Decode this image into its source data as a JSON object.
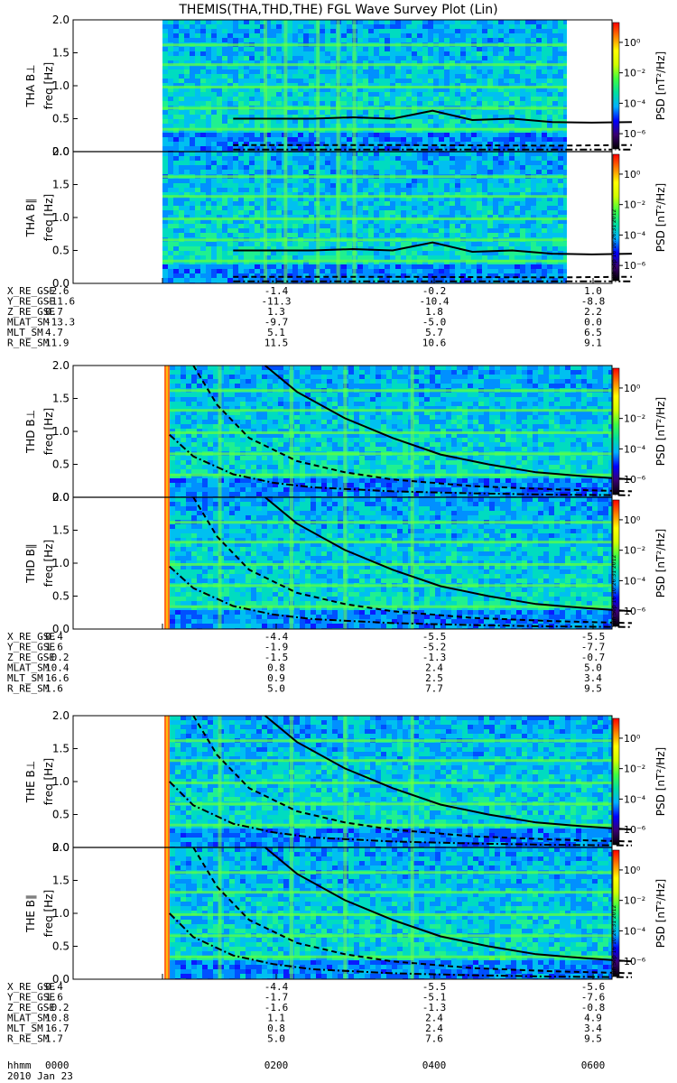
{
  "chart_data": {
    "type": "heatmap",
    "title": "THEMIS(THA,THD,THE) FGL Wave Survey Plot (Lin)",
    "colorbar": {
      "label_prefix": "PSD ",
      "label_unit": "[nT²/Hz]",
      "ticks": [
        "10⁰",
        "10⁻²",
        "10⁻⁴",
        "10⁻⁶"
      ],
      "tick_exponents": [
        0,
        -2,
        -4,
        -6
      ],
      "range_exponent": [
        -7,
        1.3
      ],
      "colors": [
        "#000000",
        "#3a0070",
        "#0000ff",
        "#00b0ff",
        "#00e0a0",
        "#40ff40",
        "#d0ff00",
        "#ffff00",
        "#ff8000",
        "#ff0000"
      ]
    },
    "yaxis": {
      "label": "freq [Hz]",
      "ylim": [
        0,
        2.0
      ],
      "ticks": [
        "0.0",
        "0.5",
        "1.0",
        "1.5",
        "2.0"
      ]
    },
    "stamp": "Sun Sep 16 10:26:31 2012",
    "time_ticks": [
      "0000",
      "0200",
      "0400",
      "0600"
    ],
    "time_row_label": "hhmm",
    "date": "2010 Jan 23",
    "groups": [
      {
        "probe": "THA",
        "panels": [
          {
            "name": "B⊥",
            "label": "THA B⊥"
          },
          {
            "name": "B∥",
            "label": "THA B∥"
          }
        ],
        "data_x_range": [
          0.1,
          0.6
        ],
        "curves": {
          "solid": {
            "x": [
              0.1,
              0.2,
              0.25,
              0.3,
              0.35,
              0.4,
              0.45,
              0.5,
              0.55,
              0.6
            ],
            "y": [
              0.5,
              0.5,
              0.52,
              0.5,
              0.62,
              0.48,
              0.5,
              0.45,
              0.44,
              0.45
            ]
          },
          "dashed": {
            "x": [
              0.1,
              0.3,
              0.5,
              0.6
            ],
            "y": [
              0.1,
              0.1,
              0.09,
              0.1
            ]
          },
          "dashdot": {
            "x": [
              0.1,
              0.3,
              0.5,
              0.6
            ],
            "y": [
              0.03,
              0.03,
              0.03,
              0.03
            ]
          }
        },
        "orbit": {
          "X_RE_GSE": [
            "-2.6",
            "-1.4",
            "-0.2",
            "1.0"
          ],
          "Y_RE_GSE": [
            "-11.6",
            "-11.3",
            "-10.4",
            "-8.8"
          ],
          "Z_RE_GSE": [
            "0.7",
            "1.3",
            "1.8",
            "2.2"
          ],
          "MLAT_SM": [
            "-13.3",
            "-9.7",
            "-5.0",
            "0.0"
          ],
          "MLT_SM": [
            "4.7",
            "5.1",
            "5.7",
            "6.5"
          ],
          "R_RE_SM": [
            "11.9",
            "11.5",
            "10.6",
            "9.1"
          ]
        }
      },
      {
        "probe": "THD",
        "panels": [
          {
            "name": "B⊥",
            "label": "THD B⊥"
          },
          {
            "name": "B∥",
            "label": "THD B∥"
          }
        ],
        "data_x_range": [
          0.05,
          0.6
        ],
        "curves": {
          "solid": {
            "x": [
              0.14,
              0.18,
              0.24,
              0.3,
              0.36,
              0.42,
              0.48,
              0.54,
              0.6
            ],
            "y": [
              2.0,
              1.6,
              1.2,
              0.9,
              0.65,
              0.5,
              0.38,
              0.32,
              0.27
            ]
          },
          "dashed": {
            "x": [
              0.05,
              0.08,
              0.12,
              0.18,
              0.24,
              0.3,
              0.4,
              0.5,
              0.6
            ],
            "y": [
              2.0,
              1.4,
              0.9,
              0.55,
              0.38,
              0.27,
              0.17,
              0.12,
              0.09
            ]
          },
          "dashdot": {
            "x": [
              0.02,
              0.05,
              0.1,
              0.15,
              0.2,
              0.3,
              0.4,
              0.5,
              0.6
            ],
            "y": [
              0.95,
              0.62,
              0.35,
              0.22,
              0.15,
              0.09,
              0.06,
              0.04,
              0.03
            ]
          }
        },
        "orbit": {
          "X_RE_GSE": [
            "0.4",
            "-4.4",
            "-5.5",
            "-5.5"
          ],
          "Y_RE_GSE": [
            "1.6",
            "-1.9",
            "-5.2",
            "-7.7"
          ],
          "Z_RE_GSE": [
            "-0.2",
            "-1.5",
            "-1.3",
            "-0.7"
          ],
          "MLAT_SM": [
            "10.4",
            "0.8",
            "2.4",
            "5.0"
          ],
          "MLT_SM": [
            "16.6",
            "0.9",
            "2.5",
            "3.4"
          ],
          "R_RE_SM": [
            "1.6",
            "5.0",
            "7.7",
            "9.5"
          ]
        }
      },
      {
        "probe": "THE",
        "panels": [
          {
            "name": "B⊥",
            "label": "THE B⊥"
          },
          {
            "name": "B∥",
            "label": "THE B∥"
          }
        ],
        "data_x_range": [
          0.05,
          0.6
        ],
        "curves": {
          "solid": {
            "x": [
              0.14,
              0.18,
              0.24,
              0.3,
              0.36,
              0.42,
              0.48,
              0.54,
              0.6
            ],
            "y": [
              2.0,
              1.6,
              1.2,
              0.9,
              0.65,
              0.5,
              0.38,
              0.32,
              0.27
            ]
          },
          "dashed": {
            "x": [
              0.05,
              0.08,
              0.12,
              0.18,
              0.24,
              0.3,
              0.4,
              0.5,
              0.6
            ],
            "y": [
              2.0,
              1.4,
              0.9,
              0.55,
              0.38,
              0.27,
              0.17,
              0.12,
              0.09
            ]
          },
          "dashdot": {
            "x": [
              0.02,
              0.05,
              0.1,
              0.15,
              0.2,
              0.3,
              0.4,
              0.5,
              0.6
            ],
            "y": [
              1.0,
              0.64,
              0.36,
              0.23,
              0.15,
              0.09,
              0.06,
              0.04,
              0.03
            ]
          }
        },
        "orbit": {
          "X_RE_GSE": [
            "0.4",
            "-4.4",
            "-5.5",
            "-5.6"
          ],
          "Y_RE_GSE": [
            "1.6",
            "-1.7",
            "-5.1",
            "-7.6"
          ],
          "Z_RE_GSE": [
            "-0.2",
            "-1.6",
            "-1.3",
            "-0.8"
          ],
          "MLAT_SM": [
            "10.8",
            "1.1",
            "2.4",
            "4.9"
          ],
          "MLT_SM": [
            "16.7",
            "0.8",
            "2.4",
            "3.4"
          ],
          "R_RE_SM": [
            "1.7",
            "5.0",
            "7.6",
            "9.5"
          ]
        }
      }
    ]
  }
}
